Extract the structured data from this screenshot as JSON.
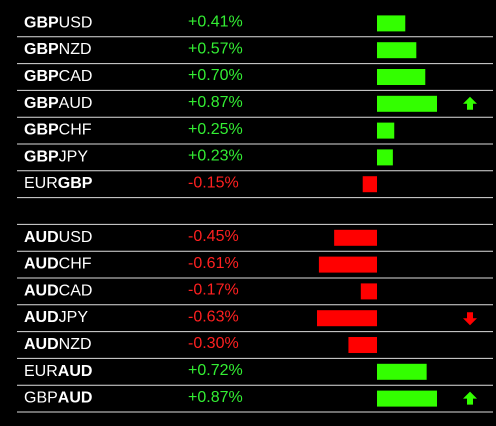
{
  "bar_colors": {
    "positive": "#33ff00",
    "negative": "#ff0000"
  },
  "text_colors": {
    "positive": "#33ee33",
    "negative": "#ff2020"
  },
  "arrow_colors": {
    "up": "#33ff00",
    "down": "#ff0000"
  },
  "groups": [
    {
      "rows": [
        {
          "parts": [
            {
              "text": "GBP",
              "bold": true
            },
            {
              "text": "USD",
              "bold": false
            }
          ],
          "value": 0.41,
          "value_label": "+0.41%"
        },
        {
          "parts": [
            {
              "text": "GBP",
              "bold": true
            },
            {
              "text": "NZD",
              "bold": false
            }
          ],
          "value": 0.57,
          "value_label": "+0.57%"
        },
        {
          "parts": [
            {
              "text": "GBP",
              "bold": true
            },
            {
              "text": "CAD",
              "bold": false
            }
          ],
          "value": 0.7,
          "value_label": "+0.70%"
        },
        {
          "parts": [
            {
              "text": "GBP",
              "bold": true
            },
            {
              "text": "AUD",
              "bold": false
            }
          ],
          "value": 0.87,
          "value_label": "+0.87%",
          "arrow": "up"
        },
        {
          "parts": [
            {
              "text": "GBP",
              "bold": true
            },
            {
              "text": "CHF",
              "bold": false
            }
          ],
          "value": 0.25,
          "value_label": "+0.25%"
        },
        {
          "parts": [
            {
              "text": "GBP",
              "bold": true
            },
            {
              "text": "JPY",
              "bold": false
            }
          ],
          "value": 0.23,
          "value_label": "+0.23%"
        },
        {
          "parts": [
            {
              "text": "EUR",
              "bold": false
            },
            {
              "text": "GBP",
              "bold": true
            }
          ],
          "value": -0.15,
          "value_label": "-0.15%"
        }
      ]
    },
    {
      "rows": [
        {
          "parts": [
            {
              "text": "AUD",
              "bold": true
            },
            {
              "text": "USD",
              "bold": false
            }
          ],
          "value": -0.45,
          "value_label": "-0.45%"
        },
        {
          "parts": [
            {
              "text": "AUD",
              "bold": true
            },
            {
              "text": "CHF",
              "bold": false
            }
          ],
          "value": -0.61,
          "value_label": "-0.61%"
        },
        {
          "parts": [
            {
              "text": "AUD",
              "bold": true
            },
            {
              "text": "CAD",
              "bold": false
            }
          ],
          "value": -0.17,
          "value_label": "-0.17%"
        },
        {
          "parts": [
            {
              "text": "AUD",
              "bold": true
            },
            {
              "text": "JPY",
              "bold": false
            }
          ],
          "value": -0.63,
          "value_label": "-0.63%",
          "arrow": "down"
        },
        {
          "parts": [
            {
              "text": "AUD",
              "bold": true
            },
            {
              "text": "NZD",
              "bold": false
            }
          ],
          "value": -0.3,
          "value_label": "-0.30%"
        },
        {
          "parts": [
            {
              "text": "EUR",
              "bold": false
            },
            {
              "text": "AUD",
              "bold": true
            }
          ],
          "value": 0.72,
          "value_label": "+0.72%"
        },
        {
          "parts": [
            {
              "text": "GBP",
              "bold": false
            },
            {
              "text": "AUD",
              "bold": true
            }
          ],
          "value": 0.87,
          "value_label": "+0.87%",
          "arrow": "up"
        }
      ]
    }
  ]
}
